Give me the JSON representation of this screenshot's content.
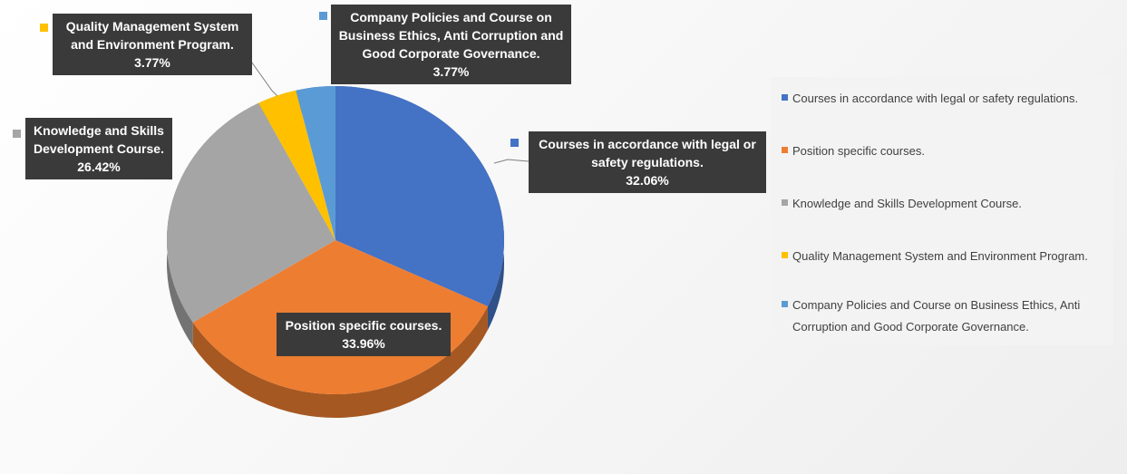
{
  "chart_data": {
    "type": "pie",
    "categories": [
      "Courses in accordance with legal or safety regulations.",
      "Position specific courses.",
      "Knowledge and Skills Development Course.",
      "Quality Management System and Environment Program.",
      "Company Policies and Course on Business Ethics, Anti Corruption and Good Corporate Governance."
    ],
    "values": [
      32.06,
      33.96,
      26.42,
      3.77,
      3.77
    ],
    "value_labels": [
      "32.06%",
      "33.96%",
      "26.42%",
      "3.77%",
      "3.77%"
    ],
    "colors": [
      "#4472c4",
      "#ed7d31",
      "#a5a5a5",
      "#ffc000",
      "#5b9bd5"
    ],
    "legend": "right"
  }
}
